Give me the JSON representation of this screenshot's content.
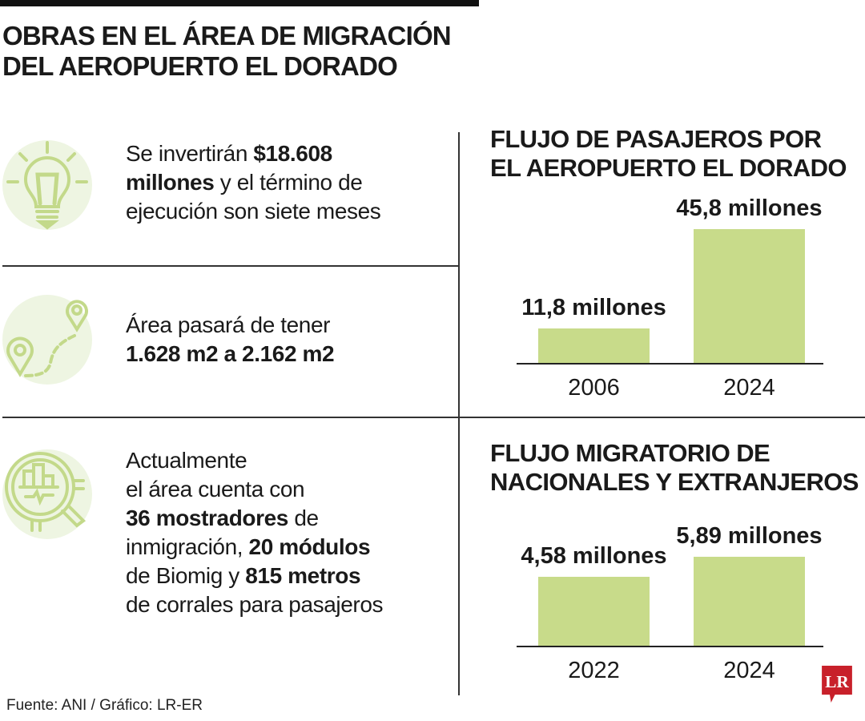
{
  "title": [
    "OBRAS EN EL ÁREA DE MIGRACIÓN",
    "DEL AEROPUERTO EL DORADO"
  ],
  "facts": [
    {
      "icon": "lightbulb-icon",
      "lines": [
        [
          {
            "t": "Se invertirán ",
            "b": false
          },
          {
            "t": "$18.608",
            "b": true
          }
        ],
        [
          {
            "t": "millones",
            "b": true
          },
          {
            "t": " y el término de",
            "b": false
          }
        ],
        [
          {
            "t": "ejecución son siete meses",
            "b": false
          }
        ]
      ]
    },
    {
      "icon": "route-pins-icon",
      "lines": [
        [
          {
            "t": "Área pasará de tener",
            "b": false
          }
        ],
        [
          {
            "t": "1.628 m2 a 2.162 m2",
            "b": true
          }
        ]
      ]
    },
    {
      "icon": "magnifier-chart-icon",
      "lines": [
        [
          {
            "t": "Actualmente",
            "b": false
          }
        ],
        [
          {
            "t": "el área cuenta con",
            "b": false
          }
        ],
        [
          {
            "t": "36 mostradores",
            "b": true
          },
          {
            "t": " de",
            "b": false
          }
        ],
        [
          {
            "t": "inmigración, ",
            "b": false
          },
          {
            "t": "20 módulos",
            "b": true
          }
        ],
        [
          {
            "t": "de Biomig y ",
            "b": false
          },
          {
            "t": "815 metros",
            "b": true
          }
        ],
        [
          {
            "t": "de corrales para pasajeros",
            "b": false
          }
        ]
      ]
    }
  ],
  "colors": {
    "bar": "#c8db8a",
    "icon_bg": "#eef5e2",
    "icon_stroke": "#c3d98a",
    "logo": "#c8202a"
  },
  "chart_data": [
    {
      "type": "bar",
      "title": "FLUJO DE PASAJEROS POR EL AEROPUERTO EL DORADO",
      "title_lines": [
        "FLUJO DE PASAJEROS POR",
        "EL AEROPUERTO EL DORADO"
      ],
      "categories": [
        "2006",
        "2024"
      ],
      "values": [
        11.8,
        45.8
      ],
      "data_labels": [
        "11,8 millones",
        "45,8 millones"
      ],
      "unit": "millones",
      "ylim": [
        0,
        45.8
      ],
      "grid": false
    },
    {
      "type": "bar",
      "title": "FLUJO MIGRATORIO DE NACIONALES Y EXTRANJEROS",
      "title_lines": [
        "FLUJO MIGRATORIO DE",
        "NACIONALES Y EXTRANJEROS"
      ],
      "categories": [
        "2022",
        "2024"
      ],
      "values": [
        4.58,
        5.89
      ],
      "data_labels": [
        "4,58 millones",
        "5,89 millones"
      ],
      "unit": "millones",
      "ylim": [
        0,
        5.89
      ],
      "grid": false
    }
  ],
  "source": "Fuente: ANI / Gráfico: LR-ER",
  "logo_text": "LR"
}
